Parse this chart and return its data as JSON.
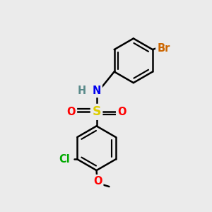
{
  "bg_color": "#ebebeb",
  "atom_colors": {
    "C": "#000000",
    "H": "#5a8a8a",
    "N": "#0000ee",
    "O": "#ff0000",
    "S": "#ddcc00",
    "Cl": "#00aa00",
    "Br": "#cc6600"
  },
  "bond_color": "#000000",
  "bond_width": 1.8,
  "font_size": 10.5,
  "figsize": [
    3.0,
    3.0
  ],
  "dpi": 100
}
